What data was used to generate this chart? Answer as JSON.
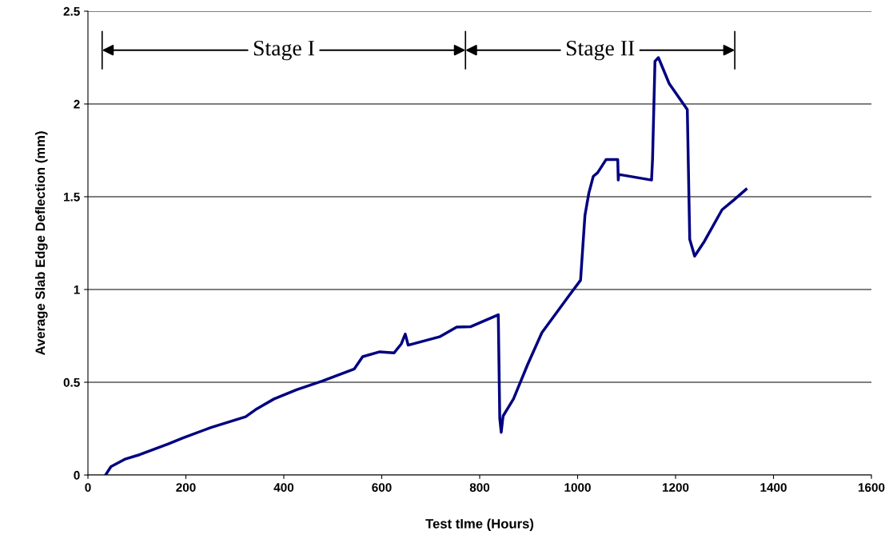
{
  "chart_data": {
    "type": "line",
    "xlabel": "Test tIme (Hours)",
    "ylabel": "Average Slab Edge Deflection (mm)",
    "x": [
      36,
      47,
      77,
      106,
      164,
      194,
      251,
      322,
      345,
      380,
      426,
      479,
      544,
      561,
      596,
      625,
      640,
      648,
      654,
      718,
      753,
      782,
      838,
      841,
      844,
      847,
      848,
      869,
      898,
      927,
      980,
      1006,
      1015,
      1023,
      1032,
      1041,
      1058,
      1082,
      1083,
      1084,
      1151,
      1153,
      1158,
      1165,
      1187,
      1224,
      1229,
      1239,
      1259,
      1295,
      1318,
      1344
    ],
    "series": [
      {
        "color": "#000080",
        "values": [
          0,
          0.045,
          0.087,
          0.11,
          0.168,
          0.2,
          0.256,
          0.314,
          0.357,
          0.41,
          0.46,
          0.507,
          0.572,
          0.638,
          0.664,
          0.658,
          0.707,
          0.76,
          0.7,
          0.745,
          0.797,
          0.8,
          0.864,
          0.306,
          0.23,
          0.3,
          0.319,
          0.41,
          0.596,
          0.767,
          0.958,
          1.05,
          1.4,
          1.52,
          1.61,
          1.63,
          1.7,
          1.7,
          1.59,
          1.62,
          1.59,
          1.7,
          2.23,
          2.25,
          2.11,
          1.97,
          1.27,
          1.18,
          1.26,
          1.43,
          1.48,
          1.54
        ]
      }
    ],
    "xlim": [
      0,
      1600
    ],
    "xticks": [
      0,
      200,
      400,
      600,
      800,
      1000,
      1200,
      1400,
      1600
    ],
    "ylim": [
      0,
      2.5
    ],
    "yticks": [
      0,
      0.5,
      1,
      1.5,
      2,
      2.5
    ],
    "ref_lines": [
      {
        "axis": "x",
        "value": 29,
        "color": "#000000"
      },
      {
        "axis": "x",
        "value": 771,
        "color": "#000000"
      },
      {
        "axis": "x",
        "value": 1321,
        "color": "#000000"
      }
    ],
    "annotations": [
      "Stage I",
      "Stage II"
    ],
    "grid": "y",
    "legend": false,
    "marker": "none",
    "line_style": "solid"
  }
}
